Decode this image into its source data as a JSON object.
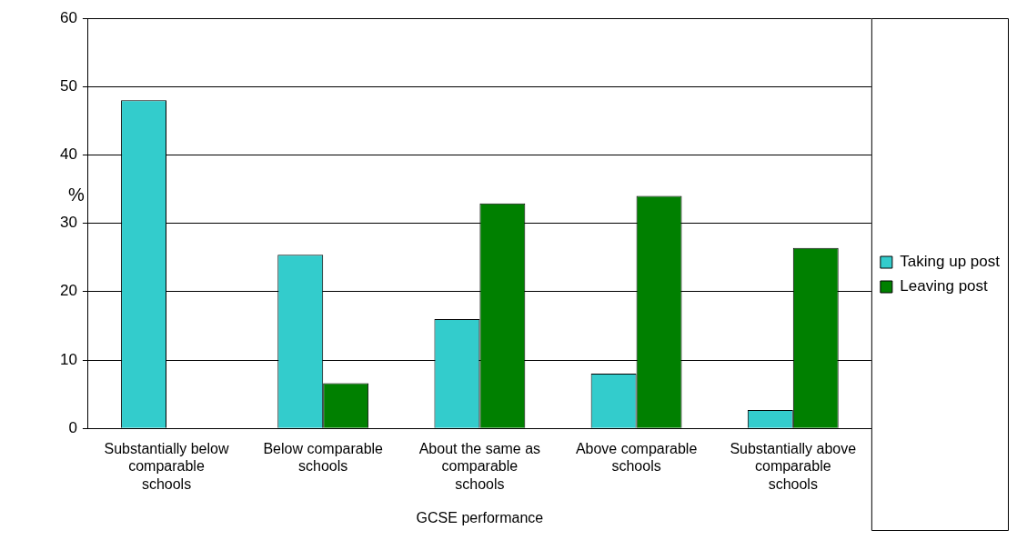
{
  "chart_data": {
    "type": "bar",
    "xlabel": "GCSE performance",
    "ylabel": "%",
    "categories": [
      "Substantially below comparable schools",
      "Below comparable schools",
      "About the same as comparable schools",
      "Above comparable schools",
      "Substantially above comparable schools"
    ],
    "series": [
      {
        "name": "Taking up post",
        "color": "#33cccc",
        "values": [
          48,
          25.4,
          16,
          8,
          2.7
        ]
      },
      {
        "name": "Leaving post",
        "color": "#008000",
        "values": [
          null,
          6.6,
          32.9,
          34,
          26.4
        ]
      }
    ],
    "ylim": [
      0,
      60
    ],
    "yticks": [
      0,
      10,
      20,
      30,
      40,
      50,
      60
    ],
    "grid": "y",
    "legend": "right"
  }
}
